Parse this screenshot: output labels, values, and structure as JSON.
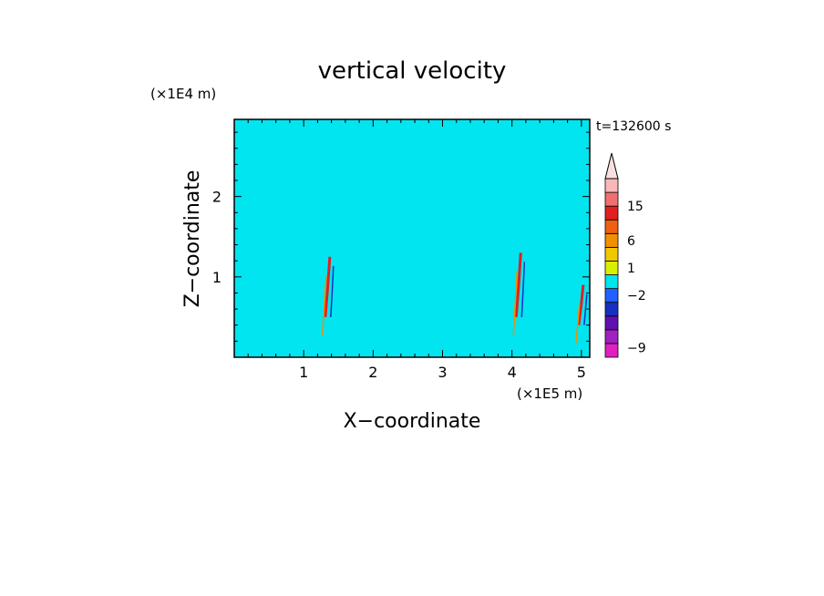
{
  "chart_data": {
    "type": "heatmap",
    "title": "vertical velocity",
    "xlabel": "X−coordinate",
    "ylabel": "Z−coordinate",
    "x_unit": "(×1E5 m)",
    "y_unit": "(×1E4 m)",
    "time_label": "t=132600 s",
    "xlim": [
      0,
      5.12
    ],
    "ylim": [
      0,
      2.96
    ],
    "x_ticks": [
      {
        "value": 1,
        "label": "1"
      },
      {
        "value": 2,
        "label": "2"
      },
      {
        "value": 3,
        "label": "3"
      },
      {
        "value": 4,
        "label": "4"
      },
      {
        "value": 5,
        "label": "5"
      }
    ],
    "y_ticks": [
      {
        "value": 1,
        "label": "1"
      },
      {
        "value": 2,
        "label": "2"
      }
    ],
    "dominant_colors": {
      "negative_small": "#00e5ef",
      "positive_small": "#d8f000"
    },
    "colorbar": {
      "levels": [
        {
          "color": "#e020c0"
        },
        {
          "color": "#a020c0"
        },
        {
          "color": "#6010b0"
        },
        {
          "color": "#1830c0"
        },
        {
          "color": "#2060ff"
        },
        {
          "color": "#00e5ef"
        },
        {
          "color": "#d8f000"
        },
        {
          "color": "#f0c800"
        },
        {
          "color": "#f09000"
        },
        {
          "color": "#f06010"
        },
        {
          "color": "#e02020"
        },
        {
          "color": "#f07070"
        },
        {
          "color": "#f8b8b8"
        }
      ],
      "labels": [
        {
          "value": "15",
          "level": 11
        },
        {
          "value": "6",
          "level": 8.5
        },
        {
          "value": "1",
          "level": 6.5
        },
        {
          "value": "−2",
          "level": 4.5
        },
        {
          "value": "−9",
          "level": 0.7
        }
      ],
      "extend_top_color": "#f8e0e0"
    },
    "features": [
      {
        "type": "updraft_core",
        "x": 1.35,
        "z_range": [
          0.5,
          1.25
        ]
      },
      {
        "type": "updraft_core",
        "x": 4.1,
        "z_range": [
          0.5,
          1.3
        ]
      },
      {
        "type": "updraft_core",
        "x": 5.0,
        "z_range": [
          0.4,
          0.9
        ]
      }
    ]
  }
}
